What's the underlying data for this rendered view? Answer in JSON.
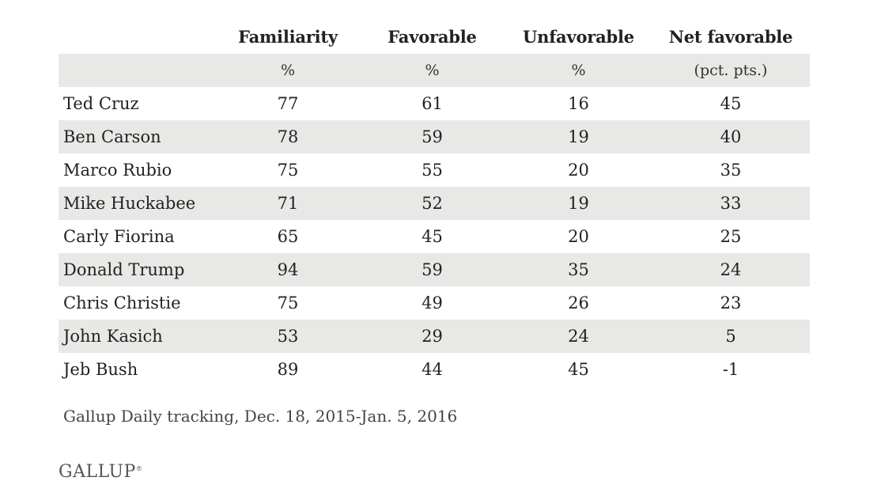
{
  "chart_data": {
    "type": "table",
    "columns": [
      "",
      "Familiarity",
      "Favorable",
      "Unfavorable",
      "Net favorable"
    ],
    "units": [
      "",
      "%",
      "%",
      "%",
      "(pct. pts.)"
    ],
    "rows": [
      {
        "name": "Ted Cruz",
        "familiarity": "77",
        "favorable": "61",
        "unfavorable": "16",
        "net": "45"
      },
      {
        "name": "Ben Carson",
        "familiarity": "78",
        "favorable": "59",
        "unfavorable": "19",
        "net": "40"
      },
      {
        "name": "Marco Rubio",
        "familiarity": "75",
        "favorable": "55",
        "unfavorable": "20",
        "net": "35"
      },
      {
        "name": "Mike Huckabee",
        "familiarity": "71",
        "favorable": "52",
        "unfavorable": "19",
        "net": "33"
      },
      {
        "name": "Carly Fiorina",
        "familiarity": "65",
        "favorable": "45",
        "unfavorable": "20",
        "net": "25"
      },
      {
        "name": "Donald Trump",
        "familiarity": "94",
        "favorable": "59",
        "unfavorable": "35",
        "net": "24"
      },
      {
        "name": "Chris Christie",
        "familiarity": "75",
        "favorable": "49",
        "unfavorable": "26",
        "net": "23"
      },
      {
        "name": "John Kasich",
        "familiarity": "53",
        "favorable": "29",
        "unfavorable": "24",
        "net": "5"
      },
      {
        "name": "Jeb Bush",
        "familiarity": "89",
        "favorable": "44",
        "unfavorable": "45",
        "net": "-1"
      }
    ],
    "footnote": "Gallup Daily tracking, Dec. 18, 2015-Jan. 5, 2016",
    "stripe_color": "#e8e8e6"
  },
  "brand": {
    "logo_text": "GALLUP",
    "logo_mark": "®"
  }
}
